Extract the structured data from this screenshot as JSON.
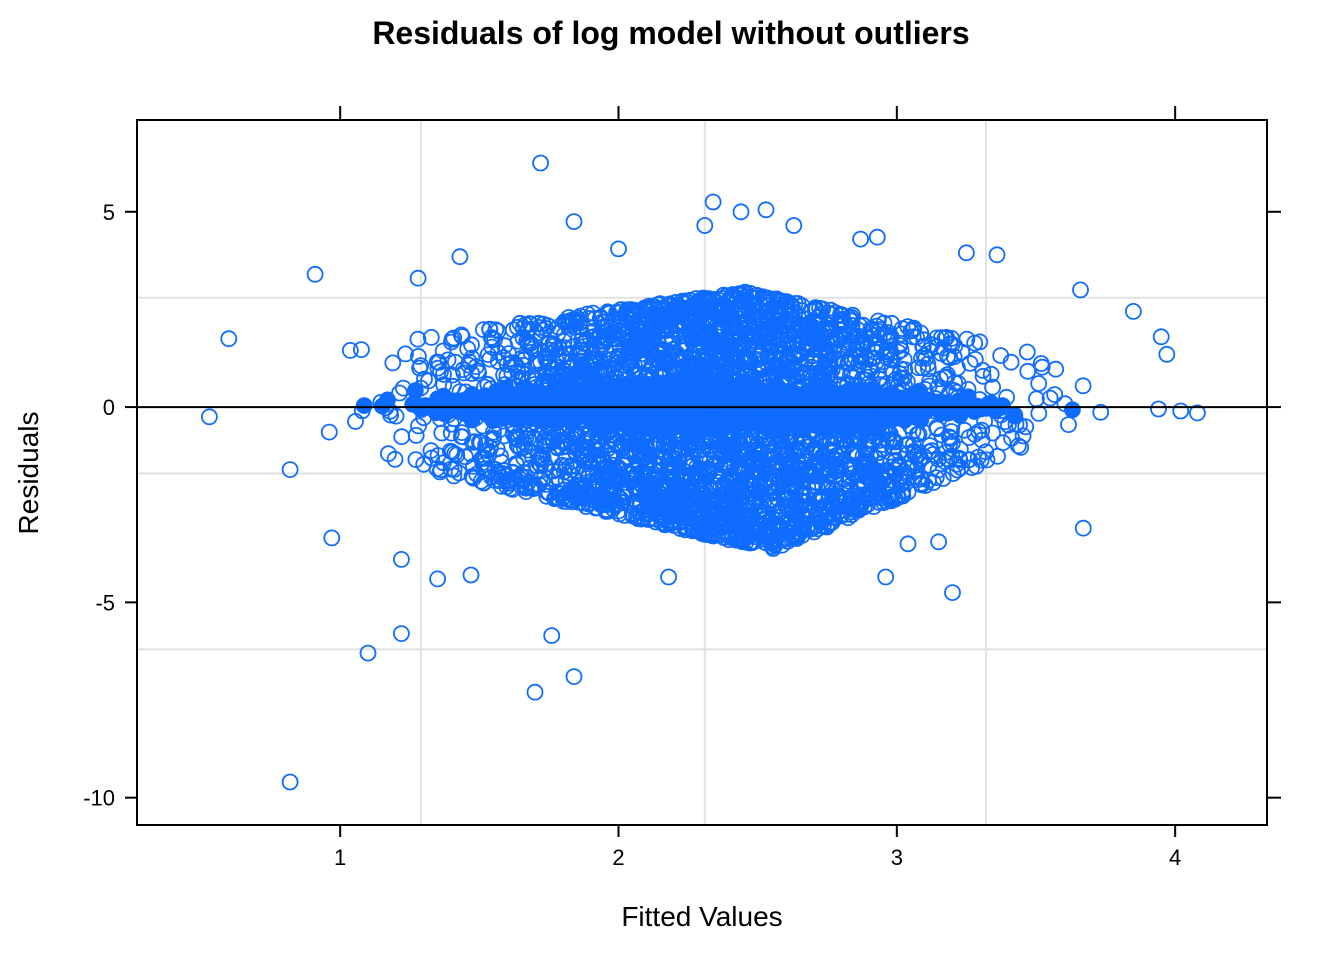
{
  "chart_data": {
    "type": "scatter",
    "title": "Residuals of log model without outliers",
    "xlabel": "Fitted Values",
    "ylabel": "Residuals",
    "xlim": [
      0.27,
      4.33
    ],
    "ylim": [
      -10.7,
      7.35
    ],
    "x_ticks": [
      1,
      2,
      3,
      4
    ],
    "x_tick_labels": [
      "1",
      "2",
      "3",
      "4"
    ],
    "y_ticks": [
      5,
      0,
      -5,
      -10
    ],
    "y_tick_labels": [
      "5",
      "0",
      "-5",
      "-10"
    ],
    "x_grid": [
      1.29,
      2.31,
      3.32
    ],
    "y_grid": [
      2.8,
      -1.7,
      -6.2
    ],
    "grid": true,
    "reference_line": 0,
    "marker": "open-circle",
    "color": "#0F6CFF",
    "distribution_note_shape": "diamond-shaped cloud centered near y=0, widest near x≈2.4",
    "outliers": [
      {
        "x": 1.72,
        "y": 6.25
      },
      {
        "x": 2.34,
        "y": 5.25
      },
      {
        "x": 2.44,
        "y": 5.0
      },
      {
        "x": 2.53,
        "y": 5.05
      },
      {
        "x": 1.84,
        "y": 4.75
      },
      {
        "x": 2.63,
        "y": 4.65
      },
      {
        "x": 2.31,
        "y": 4.65
      },
      {
        "x": 0.91,
        "y": 3.4
      },
      {
        "x": 1.28,
        "y": 3.3
      },
      {
        "x": 1.43,
        "y": 3.85
      },
      {
        "x": 2.0,
        "y": 4.05
      },
      {
        "x": 0.6,
        "y": 1.75
      },
      {
        "x": 0.53,
        "y": -0.25
      },
      {
        "x": 0.82,
        "y": -1.6
      },
      {
        "x": 0.97,
        "y": -3.35
      },
      {
        "x": 1.22,
        "y": -3.9
      },
      {
        "x": 1.35,
        "y": -4.4
      },
      {
        "x": 1.47,
        "y": -4.3
      },
      {
        "x": 1.22,
        "y": -5.8
      },
      {
        "x": 1.1,
        "y": -6.3
      },
      {
        "x": 1.76,
        "y": -5.85
      },
      {
        "x": 1.84,
        "y": -6.9
      },
      {
        "x": 1.7,
        "y": -7.3
      },
      {
        "x": 0.82,
        "y": -9.6
      },
      {
        "x": 2.18,
        "y": -4.35
      },
      {
        "x": 2.96,
        "y": -4.35
      },
      {
        "x": 3.2,
        "y": -4.75
      },
      {
        "x": 3.67,
        "y": -3.1
      },
      {
        "x": 3.04,
        "y": -3.5
      },
      {
        "x": 3.15,
        "y": -3.45
      },
      {
        "x": 3.95,
        "y": 1.8
      },
      {
        "x": 3.97,
        "y": 1.35
      },
      {
        "x": 3.85,
        "y": 2.45
      },
      {
        "x": 3.66,
        "y": 3.0
      },
      {
        "x": 3.94,
        "y": -0.05
      },
      {
        "x": 4.02,
        "y": -0.1
      },
      {
        "x": 4.08,
        "y": -0.15
      },
      {
        "x": 3.36,
        "y": 3.9
      },
      {
        "x": 3.25,
        "y": 3.95
      },
      {
        "x": 2.87,
        "y": 4.3
      },
      {
        "x": 2.93,
        "y": 4.35
      }
    ]
  }
}
